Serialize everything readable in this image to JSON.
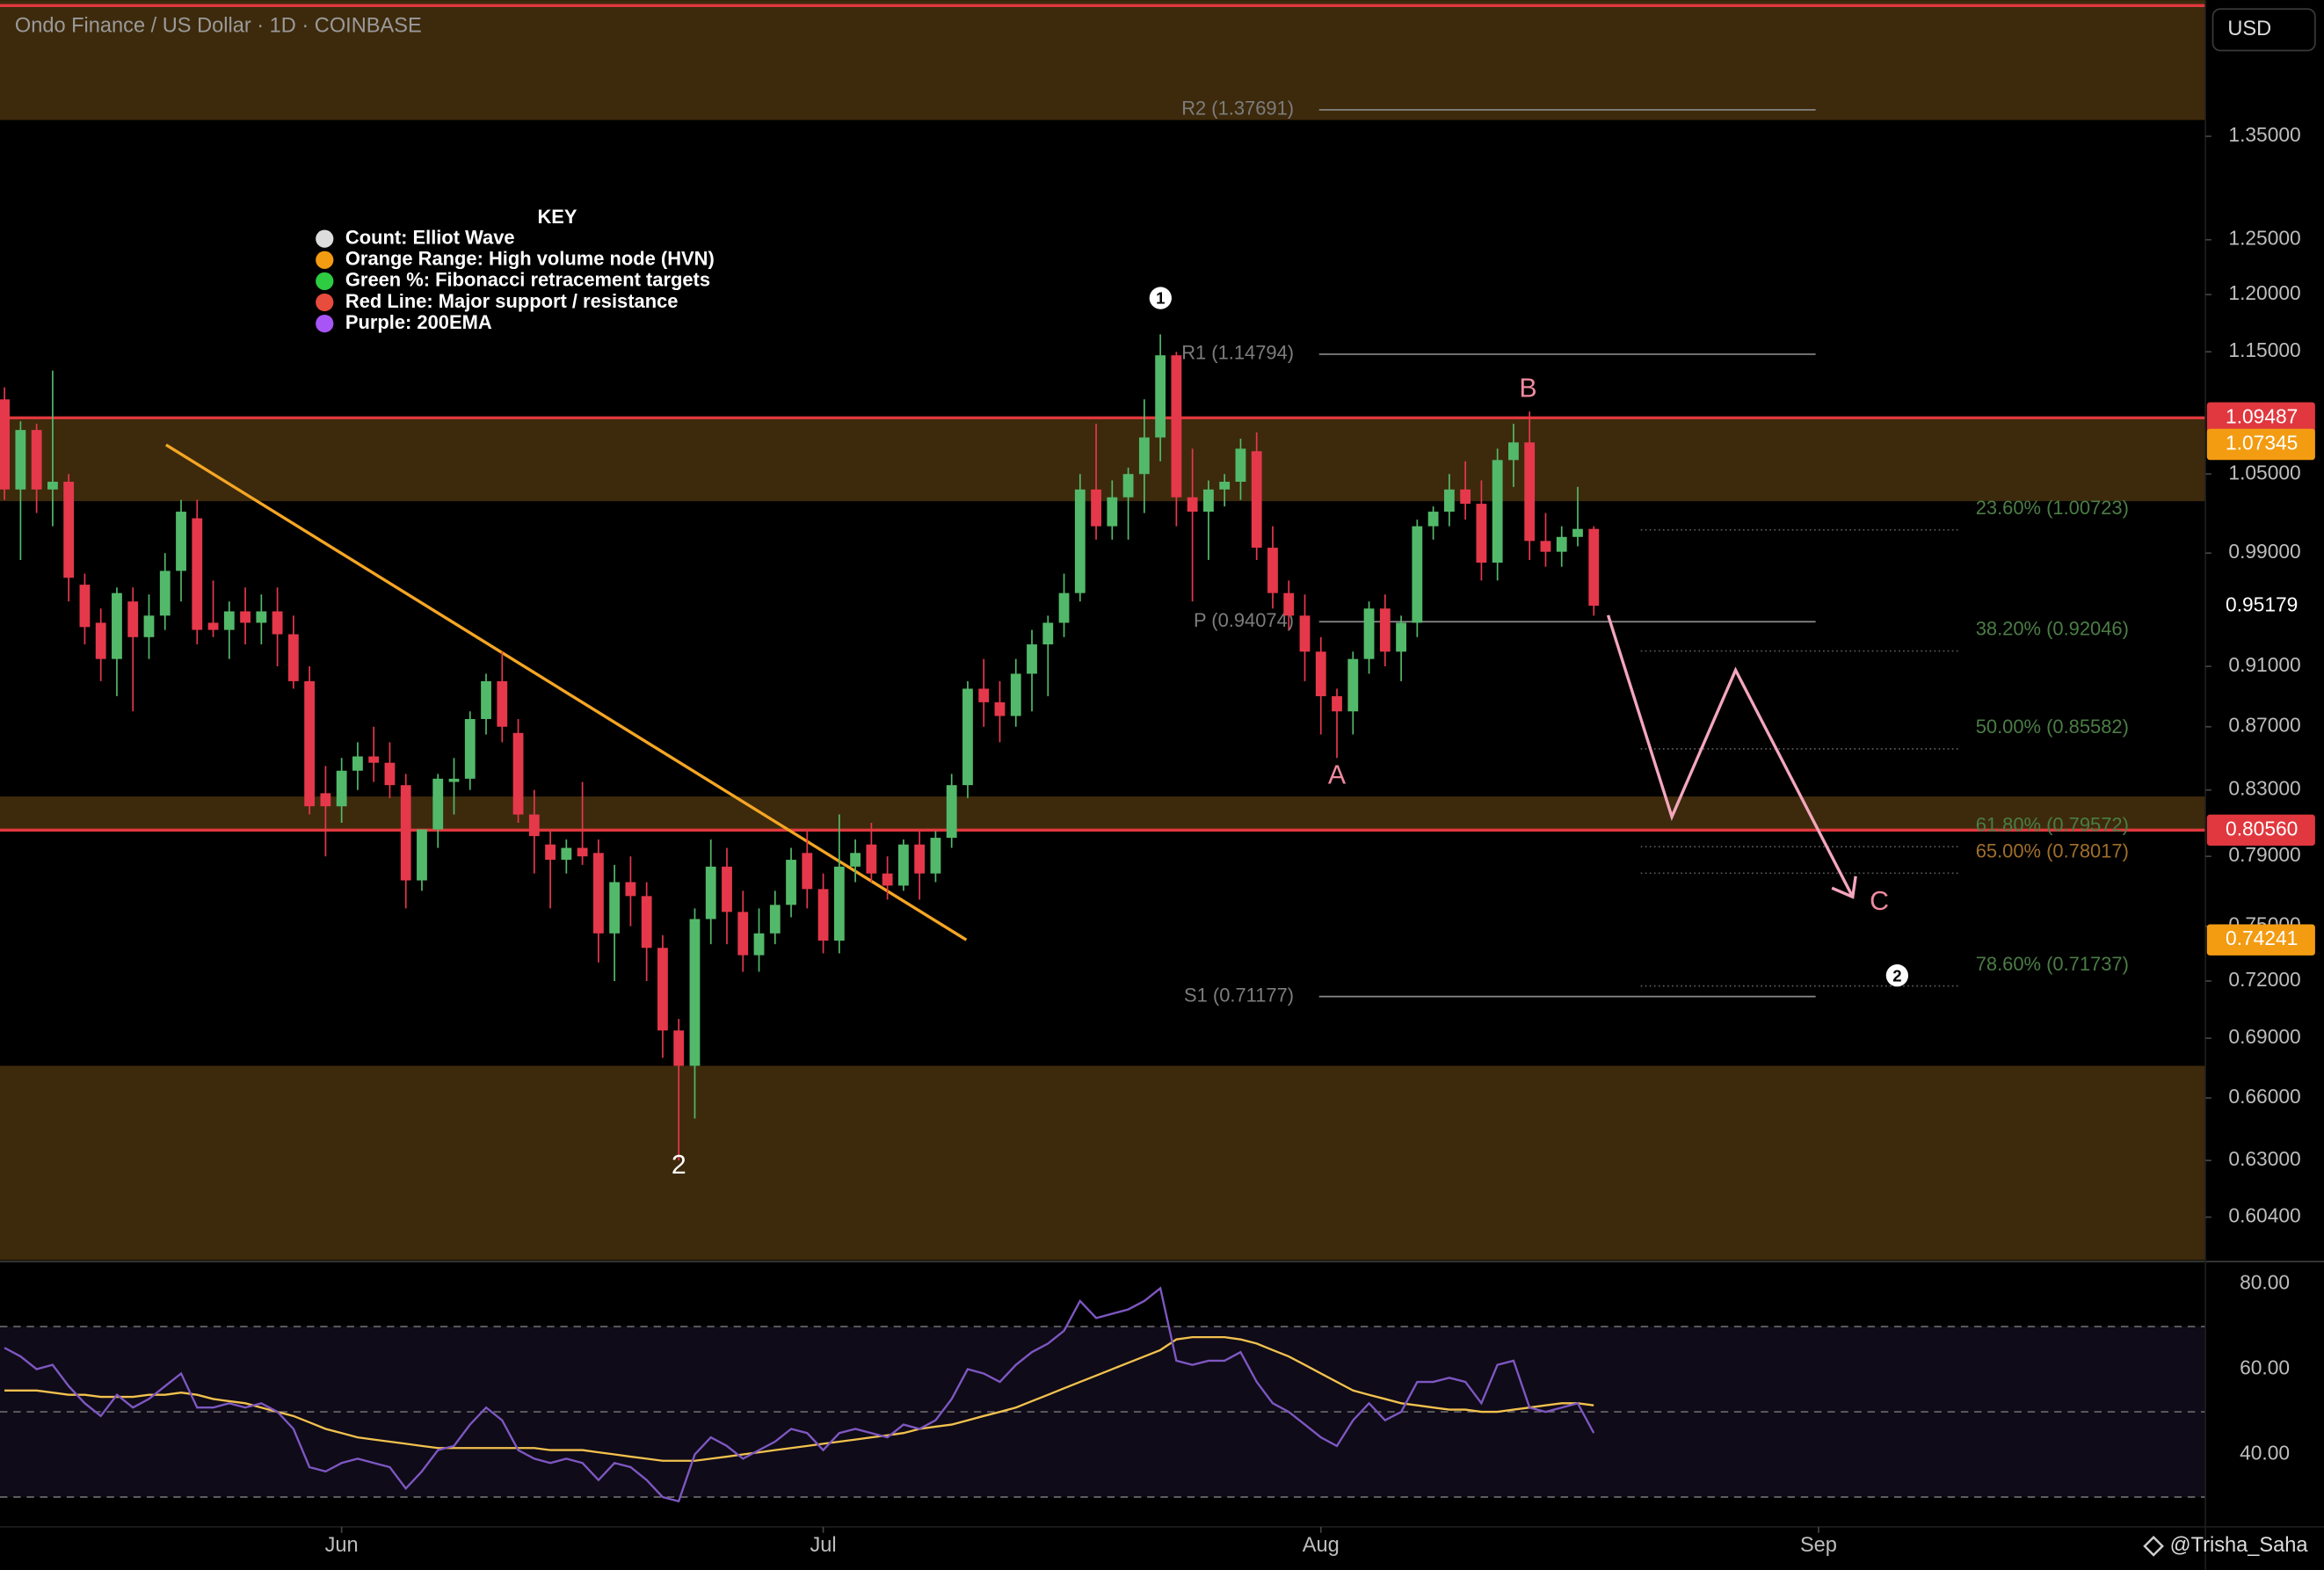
{
  "header": {
    "title": "Ondo Finance / US Dollar · 1D · COINBASE",
    "currency": "USD"
  },
  "watermark": "@Trisha_Saha",
  "chart_data": {
    "type": "candlestick",
    "log_scale": true,
    "up_color": "#53b96a",
    "down_color": "#e5384b",
    "xlim": [
      -0.28,
      137.1
    ],
    "xticks": [
      {
        "value": 21,
        "label": "Jun"
      },
      {
        "value": 51,
        "label": "Jul"
      },
      {
        "value": 82,
        "label": "Aug"
      },
      {
        "value": 113,
        "label": "Sep"
      }
    ],
    "ylim": [
      0.585,
      1.494
    ],
    "yticks": [
      {
        "value": 1.35,
        "label": "1.35000"
      },
      {
        "value": 1.25,
        "label": "1.25000"
      },
      {
        "value": 1.2,
        "label": "1.20000"
      },
      {
        "value": 1.15,
        "label": "1.15000"
      },
      {
        "value": 1.05,
        "label": "1.05000"
      },
      {
        "value": 0.99,
        "label": "0.99000"
      },
      {
        "value": 0.91,
        "label": "0.91000"
      },
      {
        "value": 0.87,
        "label": "0.87000"
      },
      {
        "value": 0.83,
        "label": "0.83000"
      },
      {
        "value": 0.79,
        "label": "0.79000"
      },
      {
        "value": 0.75,
        "label": "0.75000"
      },
      {
        "value": 0.72,
        "label": "0.72000"
      },
      {
        "value": 0.69,
        "label": "0.69000"
      },
      {
        "value": 0.66,
        "label": "0.66000"
      },
      {
        "value": 0.63,
        "label": "0.63000"
      },
      {
        "value": 0.604,
        "label": "0.60400"
      }
    ],
    "open": [
      1.11,
      1.038,
      1.085,
      1.038,
      1.044,
      0.967,
      0.94,
      0.915,
      0.955,
      0.93,
      0.945,
      0.977,
      1.016,
      0.94,
      0.935,
      0.948,
      0.94,
      0.948,
      0.932,
      0.9,
      0.828,
      0.82,
      0.842,
      0.851,
      0.847,
      0.833,
      0.776,
      0.806,
      0.835,
      0.837,
      0.875,
      0.9,
      0.866,
      0.815,
      0.797,
      0.788,
      0.795,
      0.792,
      0.746,
      0.775,
      0.767,
      0.738,
      0.694,
      0.676,
      0.754,
      0.784,
      0.758,
      0.734,
      0.746,
      0.762,
      0.792,
      0.771,
      0.742,
      0.784,
      0.797,
      0.78,
      0.773,
      0.797,
      0.78,
      0.801,
      0.833,
      0.895,
      0.886,
      0.877,
      0.905,
      0.925,
      0.94,
      0.961,
      1.038,
      1.01,
      1.032,
      1.05,
      1.079,
      1.147,
      1.032,
      1.021,
      1.038,
      1.044,
      1.068,
      0.994,
      0.961,
      0.945,
      0.92,
      0.89,
      0.88,
      0.915,
      0.95,
      0.92,
      0.94,
      1.01,
      1.021,
      1.038,
      1.027,
      0.983,
      1.061,
      1.075,
      0.999,
      0.991,
      1.002,
      1.008
    ],
    "high": [
      1.12,
      1.092,
      1.09,
      1.134,
      1.05,
      0.975,
      0.95,
      0.965,
      0.965,
      0.96,
      0.99,
      1.03,
      1.03,
      0.97,
      0.955,
      0.965,
      0.96,
      0.965,
      0.945,
      0.91,
      0.845,
      0.85,
      0.86,
      0.87,
      0.86,
      0.84,
      0.8,
      0.84,
      0.85,
      0.88,
      0.905,
      0.92,
      0.875,
      0.83,
      0.805,
      0.8,
      0.835,
      0.8,
      0.785,
      0.79,
      0.775,
      0.745,
      0.7,
      0.76,
      0.8,
      0.795,
      0.77,
      0.76,
      0.77,
      0.795,
      0.805,
      0.78,
      0.815,
      0.8,
      0.81,
      0.79,
      0.8,
      0.805,
      0.805,
      0.84,
      0.9,
      0.915,
      0.9,
      0.915,
      0.935,
      0.945,
      0.975,
      1.05,
      1.09,
      1.045,
      1.055,
      1.11,
      1.165,
      1.15,
      1.07,
      1.045,
      1.05,
      1.078,
      1.083,
      1.01,
      0.97,
      0.96,
      0.93,
      0.895,
      0.92,
      0.955,
      0.96,
      0.945,
      1.015,
      1.025,
      1.05,
      1.06,
      1.045,
      1.07,
      1.09,
      1.1,
      1.02,
      1.01,
      1.04,
      1.01
    ],
    "low": [
      1.03,
      0.985,
      1.02,
      1.01,
      0.955,
      0.925,
      0.9,
      0.89,
      0.88,
      0.915,
      0.935,
      0.955,
      0.925,
      0.93,
      0.915,
      0.925,
      0.925,
      0.91,
      0.895,
      0.815,
      0.79,
      0.81,
      0.83,
      0.835,
      0.825,
      0.76,
      0.77,
      0.795,
      0.815,
      0.83,
      0.865,
      0.86,
      0.81,
      0.78,
      0.76,
      0.78,
      0.785,
      0.73,
      0.72,
      0.75,
      0.72,
      0.68,
      0.63,
      0.65,
      0.74,
      0.74,
      0.725,
      0.725,
      0.74,
      0.755,
      0.76,
      0.735,
      0.735,
      0.775,
      0.775,
      0.765,
      0.77,
      0.765,
      0.775,
      0.795,
      0.825,
      0.87,
      0.86,
      0.87,
      0.88,
      0.89,
      0.93,
      0.955,
      1.0,
      1.0,
      1.0,
      1.02,
      1.06,
      1.01,
      0.955,
      0.985,
      1.025,
      1.03,
      0.985,
      0.95,
      0.935,
      0.9,
      0.865,
      0.85,
      0.865,
      0.905,
      0.91,
      0.9,
      0.93,
      1.0,
      1.01,
      1.015,
      0.97,
      0.97,
      1.04,
      0.985,
      0.98,
      0.98,
      0.995,
      0.945
    ],
    "close": [
      1.038,
      1.085,
      1.038,
      1.044,
      0.972,
      0.937,
      0.915,
      0.961,
      0.93,
      0.945,
      0.977,
      1.021,
      0.935,
      0.935,
      0.948,
      0.94,
      0.948,
      0.932,
      0.9,
      0.82,
      0.82,
      0.842,
      0.851,
      0.847,
      0.833,
      0.776,
      0.806,
      0.837,
      0.837,
      0.875,
      0.9,
      0.87,
      0.815,
      0.802,
      0.788,
      0.795,
      0.79,
      0.746,
      0.775,
      0.767,
      0.738,
      0.694,
      0.676,
      0.754,
      0.784,
      0.758,
      0.734,
      0.746,
      0.762,
      0.788,
      0.771,
      0.742,
      0.784,
      0.792,
      0.78,
      0.773,
      0.797,
      0.78,
      0.801,
      0.833,
      0.895,
      0.886,
      0.877,
      0.905,
      0.925,
      0.94,
      0.961,
      1.038,
      1.01,
      1.032,
      1.05,
      1.079,
      1.147,
      1.032,
      1.021,
      1.038,
      1.044,
      1.07,
      0.994,
      0.961,
      0.945,
      0.92,
      0.89,
      0.88,
      0.915,
      0.95,
      0.92,
      0.94,
      1.01,
      1.021,
      1.038,
      1.027,
      0.983,
      1.061,
      1.075,
      0.999,
      0.991,
      1.002,
      1.008,
      0.952
    ],
    "zone_color": "#3d2a0c",
    "zones": [
      [
        1.3665,
        1.494
      ],
      [
        1.029,
        1.09487
      ],
      [
        0.8056,
        0.826
      ],
      [
        0.585,
        0.676
      ]
    ],
    "red_lines": [
      1.488,
      1.09487,
      0.8056
    ],
    "red_color": "#e0383e",
    "pivots": [
      {
        "label": "R2 (1.37691)",
        "value": 1.37691
      },
      {
        "label": "R1 (1.14794)",
        "value": 1.14794
      },
      {
        "label": "P (0.94074)",
        "value": 0.94074
      },
      {
        "label": "S1 (0.71177)",
        "value": 0.71177
      }
    ],
    "fib_levels": [
      {
        "label": "23.60% (1.00723)",
        "value": 1.00723,
        "color": "#4b7d45"
      },
      {
        "label": "38.20% (0.92046)",
        "value": 0.92046,
        "color": "#4b7d45"
      },
      {
        "label": "50.00% (0.85582)",
        "value": 0.85582,
        "color": "#4b7d45"
      },
      {
        "label": "61.80% (0.79572)",
        "value": 0.79572,
        "color": "#4b7d45"
      },
      {
        "label": "65.00% (0.78017)",
        "value": 0.78017,
        "color": "#a06e2c"
      },
      {
        "label": "78.60% (0.71737)",
        "value": 0.71737,
        "color": "#4b7d45"
      }
    ],
    "price_labels": [
      {
        "value": 1.09487,
        "label": "1.09487",
        "bg": "#e0383e"
      },
      {
        "value": 1.07345,
        "label": "1.07345",
        "bg": "#f39c12"
      },
      {
        "value": 0.95179,
        "label": "0.95179",
        "bg": null
      },
      {
        "value": 0.8056,
        "label": "0.80560",
        "bg": "#e0383e"
      },
      {
        "value": 0.74241,
        "label": "0.74241",
        "bg": "#f39c12"
      }
    ],
    "annotations": [
      {
        "text": "1",
        "circled": true,
        "color": "#ffffff"
      },
      {
        "text": "B",
        "circled": false,
        "color": "#f08aa0"
      },
      {
        "text": "A",
        "circled": false,
        "color": "#f08aa0"
      },
      {
        "text": "2",
        "circled": false,
        "color": "#ffffff"
      },
      {
        "text": "C",
        "circled": false,
        "color": "#f08aa0"
      },
      {
        "text": "2",
        "circled": true,
        "color": "#ffffff"
      }
    ],
    "key": {
      "title": "KEY",
      "items": [
        {
          "label": "Count: Elliot Wave",
          "color": "#dddddd"
        },
        {
          "label": "Orange Range: High volume node (HVN)",
          "color": "#f39c12"
        },
        {
          "label": "Green %: Fibonacci retracement targets",
          "color": "#2ecc40"
        },
        {
          "label": "Red Line: Major support / resistance",
          "color": "#e74c3c"
        },
        {
          "label": "Purple: 200EMA",
          "color": "#a855f7"
        }
      ]
    },
    "rsi": {
      "ylim": [
        23,
        84.9
      ],
      "yticks": [
        {
          "value": 80,
          "label": "80.00"
        },
        {
          "value": 60,
          "label": "60.00"
        },
        {
          "value": 40,
          "label": "40.00"
        }
      ],
      "levels": [
        70,
        50,
        30
      ],
      "color": "#7e57c2",
      "ma_color": "#f2c14e",
      "values": [
        65,
        63,
        60,
        61,
        56,
        52,
        49,
        54,
        51,
        53,
        56,
        59,
        51,
        51,
        52,
        51,
        52,
        50,
        46,
        37,
        36,
        38,
        39,
        38,
        37,
        32,
        36,
        41,
        42,
        47,
        51,
        48,
        41,
        39,
        38,
        39,
        38,
        34,
        38,
        37,
        34,
        30,
        29,
        40,
        44,
        42,
        39,
        41,
        43,
        46,
        45,
        41,
        45,
        46,
        45,
        44,
        47,
        46,
        48,
        53,
        60,
        59,
        57,
        61,
        64,
        66,
        69,
        76,
        72,
        73,
        74,
        76,
        79,
        62,
        61,
        62,
        62,
        64,
        57,
        52,
        50,
        47,
        44,
        42,
        48,
        52,
        48,
        50,
        57,
        57,
        58,
        57,
        52,
        61,
        62,
        51,
        50,
        51,
        52,
        45
      ],
      "ma": [
        55,
        55,
        55,
        54.5,
        54,
        54,
        53.5,
        53.5,
        53.5,
        54,
        54,
        54.5,
        54,
        53,
        52.5,
        52,
        51,
        50,
        49,
        47.5,
        46,
        45,
        44,
        43.5,
        43,
        42.5,
        42,
        41.5,
        41.5,
        41.5,
        41.5,
        41.5,
        41.5,
        41.5,
        41,
        41,
        41,
        40.5,
        40,
        39.5,
        39,
        38.5,
        38.5,
        38.5,
        39,
        39.5,
        40,
        40.5,
        41,
        41.5,
        42,
        42.5,
        43,
        43.5,
        44,
        44.5,
        45,
        46,
        46.5,
        47,
        48,
        49,
        50,
        51,
        52.5,
        54,
        55.5,
        57,
        58.5,
        60,
        61.5,
        63,
        64.5,
        67,
        67.5,
        67.5,
        67.5,
        67,
        66,
        64.5,
        63,
        61,
        59,
        57,
        55,
        54,
        53,
        52,
        51.5,
        51,
        50.5,
        50.5,
        50,
        50,
        50.5,
        51,
        51.5,
        52,
        52,
        51.5
      ]
    }
  }
}
